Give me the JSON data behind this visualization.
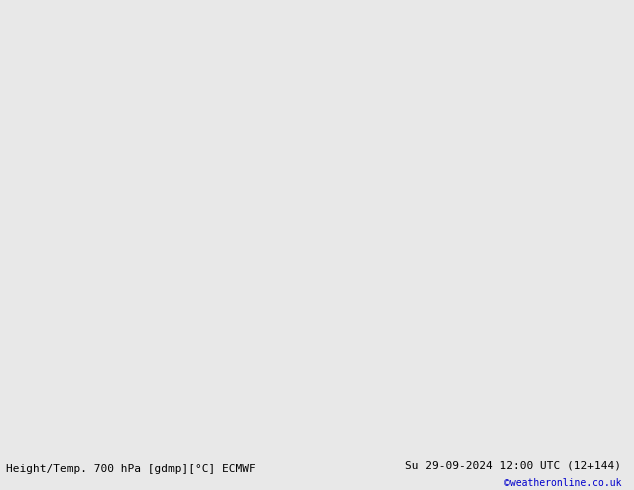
{
  "title_left": "Height/Temp. 700 hPa [gdmp][°C] ECMWF",
  "title_right": "Su 29-09-2024 12:00 UTC (12+144)",
  "credit": "©weatheronline.co.uk",
  "background_color": "#d0d8e0",
  "land_color": "#b8e4a8",
  "land_border_color": "#888888",
  "ocean_color": "#dce8f0",
  "fig_width": 6.34,
  "fig_height": 4.9,
  "dpi": 100,
  "lon_min": -110,
  "lon_max": -20,
  "lat_min": -75,
  "lat_max": 10,
  "geopotential_color": "#000000",
  "geopotential_thick_color": "#000000",
  "temp_positive_color": "#cc0000",
  "temp_negative_color": "#ff8800",
  "temp_zero_color": "#ff00aa",
  "temp_cold_color": "#00cc00",
  "temp_very_cold_color": "#00cccc",
  "footer_fontsize": 8,
  "contour_fontsize": 7
}
